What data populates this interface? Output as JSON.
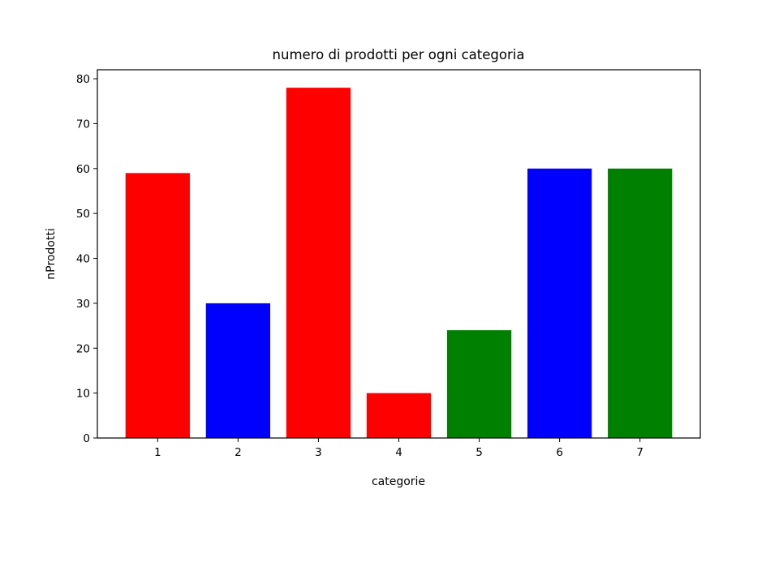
{
  "chart_data": {
    "type": "bar",
    "title": "numero di prodotti per ogni categoria",
    "xlabel": "categorie",
    "ylabel": "nProdotti",
    "categories": [
      "1",
      "2",
      "3",
      "4",
      "5",
      "6",
      "7"
    ],
    "values": [
      59,
      30,
      78,
      10,
      24,
      60,
      60
    ],
    "bar_colors": [
      "#ff0000",
      "#0000ff",
      "#ff0000",
      "#ff0000",
      "#008000",
      "#0000ff",
      "#008000"
    ],
    "ylim": [
      0,
      82
    ],
    "yticks": [
      0,
      10,
      20,
      30,
      40,
      50,
      60,
      70,
      80
    ],
    "grid": false,
    "legend": "none"
  }
}
